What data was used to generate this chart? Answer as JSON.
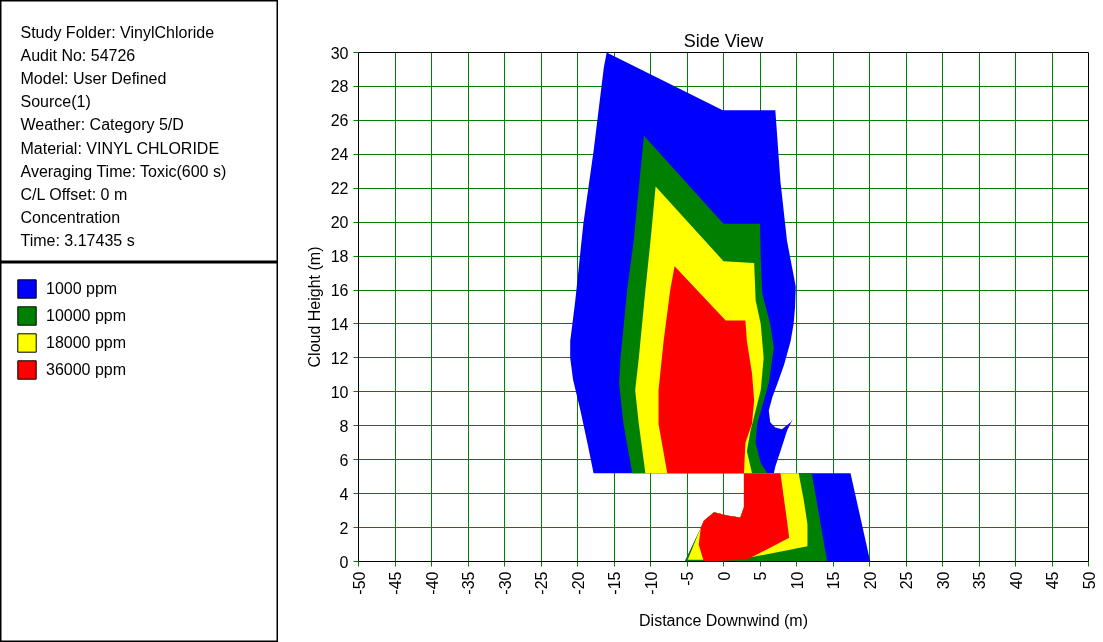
{
  "chart_data": {
    "type": "area",
    "title": "Side View",
    "xlabel": "Distance Downwind (m)",
    "ylabel": "Cloud Height (m)",
    "annotations": [
      "Study Folder: VinylChloride",
      "Audit No: 54726",
      "Model: User Defined",
      "Source(1)",
      "Weather: Category 5/D",
      "Material: VINYL CHLORIDE",
      "Averaging Time: Toxic(600 s)",
      "C/L Offset: 0 m",
      "Concentration",
      "Time: 3.17435 s"
    ],
    "xlim": [
      -50,
      50
    ],
    "ylim": [
      0,
      30
    ],
    "xticks": [
      -50,
      -45,
      -40,
      -35,
      -30,
      -25,
      -20,
      -15,
      -10,
      -5,
      0,
      5,
      10,
      15,
      20,
      25,
      30,
      35,
      40,
      45,
      50
    ],
    "yticks": [
      0,
      2,
      4,
      6,
      8,
      10,
      12,
      14,
      16,
      18,
      20,
      22,
      24,
      26,
      28,
      30
    ],
    "grid": true,
    "legend": "left",
    "series": [
      {
        "name": "1000 ppm",
        "color": "#0000ff",
        "x": [
          -16,
          -0.1,
          7.1,
          7.4,
          7.8,
          8.7,
          9.9,
          9.8,
          9.6,
          9.2,
          8.3,
          7.4,
          6.7,
          6.2,
          6.4,
          7.1,
          8.0,
          9.2,
          9.5,
          8.7,
          7.8,
          7.1,
          6.9,
          -17.8,
          -18.6,
          -19.6,
          -20.6,
          -21,
          -21,
          -20.7,
          -20.3,
          -19.2,
          -17.8,
          -16.4,
          null,
          2.8,
          17.4,
          20.1,
          -5.3,
          -3.3,
          -2.7,
          -1.3,
          0.7,
          2.3,
          2.8
        ],
        "values": [
          30,
          26.6,
          26.6,
          24.8,
          22.4,
          18.9,
          16.2,
          15,
          14,
          13,
          11.6,
          10.5,
          9.7,
          8.9,
          8.2,
          7.9,
          7.8,
          8.2,
          8.4,
          7.7,
          6.5,
          5.6,
          5.2,
          5.2,
          6.9,
          8.9,
          10.7,
          12,
          13,
          14,
          15.4,
          19.9,
          24.2,
          29.1,
          null,
          5.2,
          5.2,
          0,
          0,
          1.8,
          2.4,
          2.9,
          2.7,
          2.6,
          3.2
        ]
      },
      {
        "name": "10000 ppm",
        "color": "#008000",
        "x": [
          -10.9,
          0,
          5.0,
          5.1,
          5.3,
          6.4,
          6.9,
          6.2,
          4.6,
          4.4,
          5.1,
          6.0,
          -12.5,
          -13.7,
          -14.3,
          -14.1,
          -13.2,
          -12.3,
          -11.4,
          null,
          2.8,
          12.1,
          14.2,
          -5.3,
          -3.3,
          -2.7,
          -1.3,
          0.7,
          2.3,
          2.8
        ],
        "values": [
          25.1,
          19.9,
          19.9,
          17.9,
          15.8,
          14,
          12.6,
          10.5,
          8.1,
          7,
          5.8,
          5.2,
          5.2,
          8.1,
          10.5,
          12,
          16,
          18.9,
          22.9,
          null,
          5.2,
          5.2,
          0,
          0,
          1.8,
          2.4,
          2.9,
          2.7,
          2.6,
          3.2
        ]
      },
      {
        "name": "18000 ppm",
        "color": "#ffff00",
        "x": [
          -9.3,
          0,
          4.2,
          4.4,
          5.1,
          5.5,
          5.1,
          3.7,
          3.2,
          3.9,
          -10.7,
          -11.6,
          -12.1,
          -11.6,
          -10.7,
          -10,
          null,
          2.8,
          10.3,
          11.0,
          11.5,
          11.5,
          3.2,
          -2.7,
          -4.9,
          -3.3,
          -2.7,
          -1.3,
          0.7,
          2.3,
          2.8
        ],
        "values": [
          22.1,
          17.7,
          17.6,
          15.4,
          14,
          12,
          10.1,
          7.7,
          6.5,
          5.2,
          5.2,
          8.1,
          10.1,
          12,
          16,
          18.9,
          null,
          5.2,
          5.2,
          3.6,
          2.2,
          0.9,
          0.2,
          0.1,
          0.1,
          1.8,
          2.4,
          2.9,
          2.7,
          2.6,
          3.2
        ]
      },
      {
        "name": "36000 ppm",
        "color": "#ff0000",
        "x": [
          -6.7,
          0.3,
          3.0,
          3.2,
          3.9,
          4.2,
          3.9,
          3.0,
          2.8,
          -7.7,
          -8.9,
          -8.9,
          -8.2,
          -7.3,
          null,
          2.8,
          7.8,
          8.7,
          9.0,
          3.2,
          -2.7,
          -3.4,
          -3.1,
          -2.7,
          -1.3,
          0.7,
          2.3,
          2.8
        ],
        "values": [
          17.4,
          14.2,
          14.2,
          13,
          11.1,
          9.5,
          8.1,
          7,
          5.2,
          5.2,
          8.1,
          10.1,
          13,
          16,
          null,
          5.2,
          5.2,
          2.4,
          1.4,
          0.1,
          0,
          1,
          2,
          2.4,
          2.9,
          2.7,
          2.6,
          3.2
        ]
      }
    ]
  }
}
